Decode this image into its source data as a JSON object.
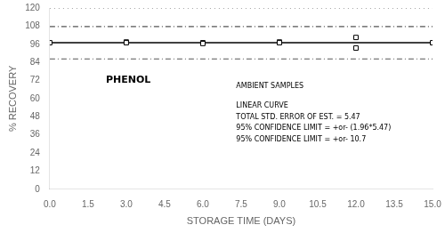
{
  "chart_data": {
    "type": "scatter",
    "xlabel": "STORAGE TIME (DAYS)",
    "ylabel": "% RECOVERY",
    "xlim": [
      0.0,
      15.0
    ],
    "ylim": [
      0,
      120
    ],
    "xticks": [
      {
        "value": 0.0,
        "label": "0.0"
      },
      1.5,
      {
        "value": 3.0,
        "label": "3.0"
      },
      4.5,
      {
        "value": 6.0,
        "label": "6.0"
      },
      7.5,
      {
        "value": 9.0,
        "label": "9.0"
      },
      10.5,
      {
        "value": 12.0,
        "label": "12.0"
      },
      13.5,
      {
        "value": 15.0,
        "label": "15.0"
      }
    ],
    "yticks": [
      0,
      12,
      24,
      36,
      48,
      60,
      72,
      84,
      96,
      108,
      120
    ],
    "grid": false,
    "x": [
      0.0,
      3.0,
      3.0,
      6.0,
      6.0,
      9.0,
      9.0,
      12.0,
      12.0,
      15.0
    ],
    "values": [
      97.0,
      97.5,
      97.0,
      97.0,
      96.5,
      97.5,
      97.0,
      100.5,
      93.5,
      97.0
    ],
    "color": "#000000",
    "marker": "square",
    "lines": [
      {
        "value": 120,
        "color": "#444444",
        "line_style": "dotted"
      },
      {
        "value": 107.7,
        "color": "#555555",
        "line_style": "dashdot"
      },
      {
        "value": 86.3,
        "color": "#555555",
        "line_style": "dashdot"
      },
      {
        "value": 97.0,
        "color": "#000000",
        "line_style": "solid"
      }
    ],
    "annotations": [
      "PHENOL",
      "AMBIENT SAMPLES",
      "LINEAR CURVE",
      "TOTAL STD. ERROR OF EST. = 5.47",
      "95% CONFIDENCE LIMIT = +or- (1.96*5.47)",
      "95% CONFIDENCE LIMIT = +or- 10.7"
    ]
  }
}
